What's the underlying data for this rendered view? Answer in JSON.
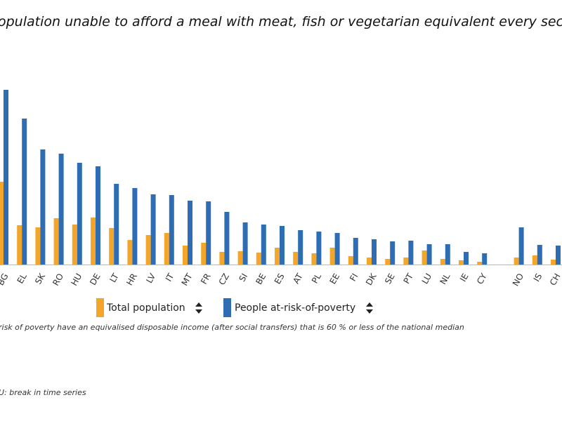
{
  "chart_data": {
    "type": "bar",
    "title": "opulation unable to afford a meal with meat, fish or vegetarian equivalent every second",
    "categories": [
      "BG",
      "EL",
      "SK",
      "RO",
      "HU",
      "DE",
      "LT",
      "HR",
      "LV",
      "IT",
      "MT",
      "FR",
      "CZ",
      "SI",
      "BE",
      "ES",
      "AT",
      "PL",
      "EE",
      "FI",
      "DK",
      "SE",
      "PT",
      "LU",
      "NL",
      "IE",
      "CY",
      null,
      "NO",
      "IS",
      "CH"
    ],
    "series": [
      {
        "name": "Total population",
        "color": "#f4a62a",
        "values": [
          23.6,
          11.2,
          10.6,
          13.2,
          11.4,
          13.4,
          10.4,
          7.0,
          8.4,
          9.0,
          5.4,
          6.2,
          3.6,
          3.8,
          3.4,
          4.8,
          3.6,
          3.2,
          4.8,
          2.4,
          2.0,
          1.6,
          2.0,
          4.0,
          1.6,
          1.2,
          0.8,
          null,
          2.0,
          2.6,
          1.4
        ]
      },
      {
        "name": "People at-risk-of-poverty",
        "color": "#2e6db4",
        "values": [
          49.8,
          41.6,
          32.8,
          31.6,
          29.0,
          28.0,
          23.0,
          21.8,
          20.0,
          19.8,
          18.2,
          18.0,
          15.0,
          12.0,
          11.4,
          11.0,
          9.8,
          9.4,
          9.0,
          7.6,
          7.2,
          6.6,
          6.8,
          5.8,
          5.8,
          3.6,
          3.2,
          null,
          10.6,
          5.6,
          5.4
        ]
      }
    ],
    "ylim": [
      0,
      50
    ],
    "notes": [
      "risk of poverty have an equivalised disposable income (after social transfers) that is 60 % or less of the national median",
      "U: break in time series"
    ]
  }
}
